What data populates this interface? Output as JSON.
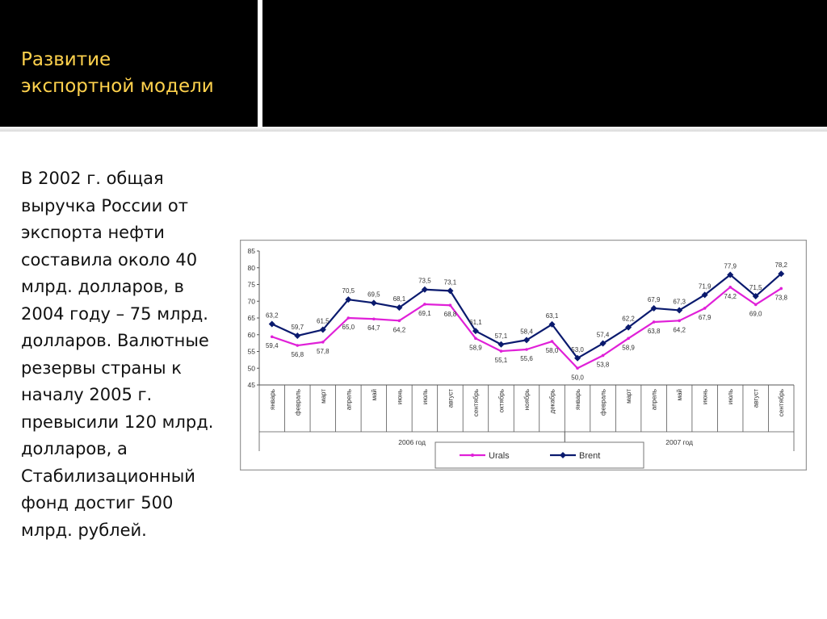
{
  "slide": {
    "title_lines": [
      "Развитие",
      "экспортной модели"
    ],
    "body_lines": [
      "В 2002 г. общая",
      "выручка России от",
      "экспорта нефти",
      "составила около 40",
      "млрд. долларов, в",
      "2004 году – 75 млрд.",
      "долларов. Валютные",
      "резервы страны к",
      "началу  2005 г.",
      "превысили 120 млрд.",
      "долларов,  а",
      "Стабилизационный",
      "фонд достиг 500",
      "млрд. рублей."
    ]
  },
  "colors": {
    "header_bg": "#000000",
    "title": "#ffd24d",
    "urals": "#e020d8",
    "brent": "#0a1a6e"
  },
  "chart_data": {
    "type": "line",
    "categories": [
      "январь",
      "февраль",
      "март",
      "апрель",
      "май",
      "июнь",
      "июль",
      "август",
      "сентябрь",
      "октябрь",
      "ноябрь",
      "декабрь",
      "январь",
      "февраль",
      "март",
      "апрель",
      "май",
      "июнь",
      "июль",
      "август",
      "сентябрь"
    ],
    "groups": [
      {
        "label": "2006 год",
        "from": 0,
        "to": 11
      },
      {
        "label": "2007 год",
        "from": 12,
        "to": 20
      }
    ],
    "series": [
      {
        "name": "Urals",
        "color": "#e020d8",
        "values": [
          59.4,
          56.8,
          57.8,
          65.0,
          64.7,
          64.2,
          69.1,
          68.8,
          58.9,
          55.1,
          55.6,
          58.0,
          50.0,
          53.8,
          58.9,
          63.8,
          64.2,
          67.9,
          74.2,
          69.0,
          73.8
        ],
        "labels": [
          "59,4",
          "56,8",
          "57,8",
          "65,0",
          "64,7",
          "64,2",
          "69,1",
          "68,8",
          "58,9",
          "55,1",
          "55,6",
          "58,0",
          "50,0",
          "53,8",
          "58,9",
          "63,8",
          "64,2",
          "67,9",
          "74,2",
          "69,0",
          "73,8"
        ]
      },
      {
        "name": "Brent",
        "color": "#0a1a6e",
        "values": [
          63.2,
          59.7,
          61.5,
          70.5,
          69.5,
          68.1,
          73.5,
          73.1,
          61.1,
          57.1,
          58.4,
          63.1,
          53.0,
          57.4,
          62.2,
          67.9,
          67.3,
          71.9,
          77.9,
          71.5,
          78.2
        ],
        "labels": [
          "63,2",
          "59,7",
          "61,5",
          "70,5",
          "69,5",
          "68,1",
          "73,5",
          "73,1",
          "61,1",
          "57,1",
          "58,4",
          "63,1",
          "53,0",
          "57,4",
          "62,2",
          "67,9",
          "67,3",
          "71,9",
          "77,9",
          "71,5",
          "78,2"
        ]
      }
    ],
    "ylim": [
      45,
      85
    ],
    "yticks": [
      45,
      50,
      55,
      60,
      65,
      70,
      75,
      80,
      85
    ],
    "title": "",
    "xlabel": "",
    "ylabel": "",
    "grid": false,
    "legend_position": "bottom"
  }
}
